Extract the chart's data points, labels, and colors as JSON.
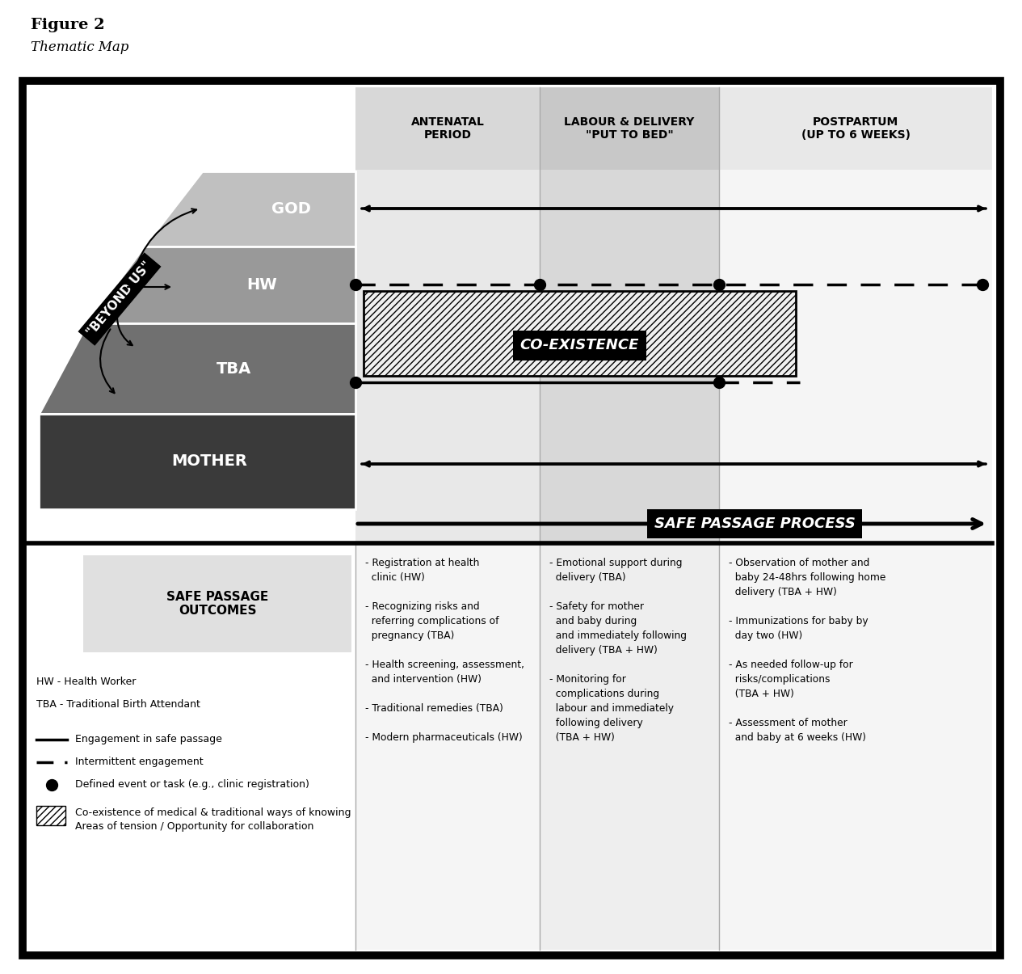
{
  "title": "Figure 2",
  "subtitle": "Thematic Map",
  "layers": [
    {
      "label": "GOD",
      "color": "#c0c0c0",
      "text_color": "#ffffff"
    },
    {
      "label": "HW",
      "color": "#999999",
      "text_color": "#ffffff"
    },
    {
      "label": "TBA",
      "color": "#707070",
      "text_color": "#ffffff"
    },
    {
      "label": "MOTHER",
      "color": "#3a3a3a",
      "text_color": "#ffffff"
    }
  ],
  "beyond_us": "\"BEYOND US\"",
  "safe_passage_process": "SAFE PASSAGE PROCESS",
  "coexistence": "CO-EXISTENCE",
  "safe_passage_outcomes": "SAFE PASSAGE\nOUTCOMES",
  "col_headers": [
    "ANTENATAL\nPERIOD",
    "LABOUR & DELIVERY\n\"PUT TO BED\"",
    "POSTPARTUM\n(UP TO 6 WEEKS)"
  ],
  "antenatal_text": "- Registration at health\n  clinic (HW)\n\n- Recognizing risks and\n  referring complications of\n  pregnancy (TBA)\n\n- Health screening, assessment,\n  and intervention (HW)\n\n- Traditional remedies (TBA)\n\n- Modern pharmaceuticals (HW)",
  "labour_text": "- Emotional support during\n  delivery (TBA)\n\n- Safety for mother\n  and baby during\n  and immediately following\n  delivery (TBA + HW)\n\n- Monitoring for\n  complications during\n  labour and immediately\n  following delivery\n  (TBA + HW)",
  "postpartum_text": "- Observation of mother and\n  baby 24-48hrs following home\n  delivery (TBA + HW)\n\n- Immunizations for baby by\n  day two (HW)\n\n- As needed follow-up for\n  risks/complications\n  (TBA + HW)\n\n- Assessment of mother\n  and baby at 6 weeks (HW)",
  "hw_label": "HW - Health Worker",
  "tba_label": "TBA - Traditional Birth Attendant",
  "legend_solid": "Engagement in safe passage",
  "legend_dashed": "Intermittent engagement",
  "legend_dot": "Defined event or task (e.g., clinic registration)",
  "legend_hatch": "Co-existence of medical & traditional ways of knowing\nAreas of tension / Opportunity for collaboration"
}
